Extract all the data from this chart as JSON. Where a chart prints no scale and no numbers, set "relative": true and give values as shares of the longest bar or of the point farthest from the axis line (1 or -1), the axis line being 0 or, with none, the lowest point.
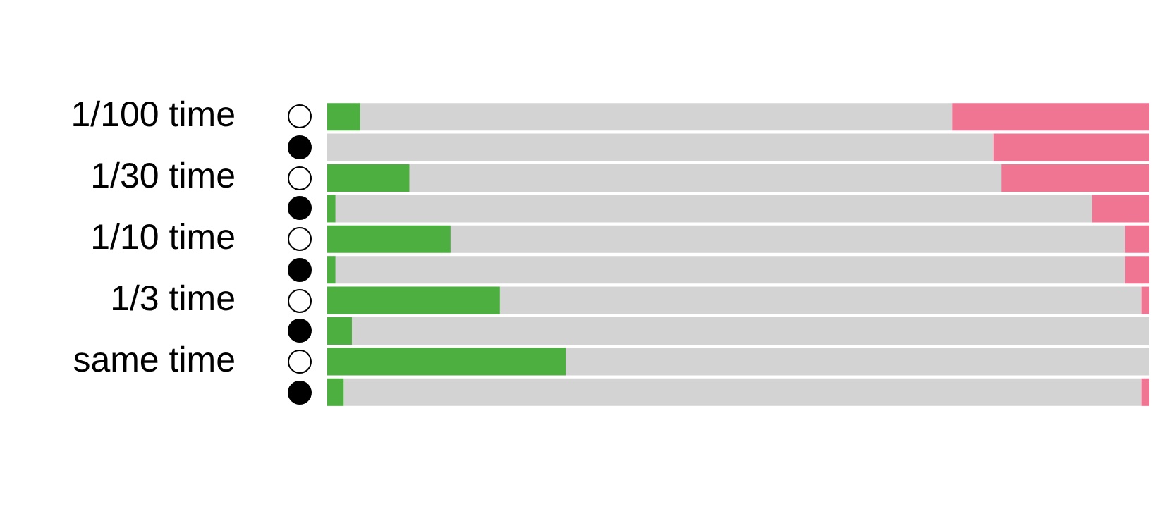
{
  "chart_data": {
    "type": "bar",
    "orientation": "horizontal",
    "stacked": true,
    "relative": true,
    "legend": false,
    "categories": [
      "1/100 time",
      null,
      "1/30 time",
      null,
      "1/10 time",
      null,
      "1/3 time",
      null,
      "same time",
      null
    ],
    "series": [
      {
        "color": "#4caf3f",
        "values": [
          0.04,
          0,
          0.1,
          0.01,
          0.15,
          0.01,
          0.21,
          0.03,
          0.29,
          0.02
        ]
      },
      {
        "color": "#d3d3d3",
        "values": [
          0.72,
          0.81,
          0.72,
          0.92,
          0.82,
          0.96,
          0.78,
          0.97,
          0.71,
          0.97
        ]
      },
      {
        "color": "#f07593",
        "values": [
          0.24,
          0.19,
          0.18,
          0.07,
          0.03,
          0.03,
          0.01,
          0,
          0,
          0.01
        ]
      }
    ]
  }
}
